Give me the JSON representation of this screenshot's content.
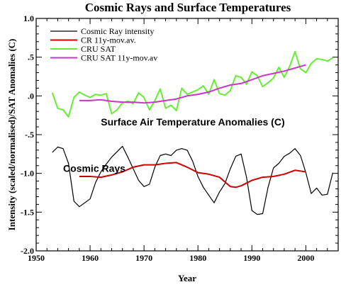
{
  "chart_data": {
    "type": "line",
    "title": "Cosmic Rays and Surface Temperatures",
    "xlabel": "Year",
    "ylabel": "Intensity (scaled/normalised)/SAT Anomalies (C)",
    "xlim": [
      1950,
      2006
    ],
    "ylim": [
      -2.0,
      1.0
    ],
    "xticks": [
      1950,
      1960,
      1970,
      1980,
      1990,
      2000
    ],
    "yticks": [
      -2.0,
      -1.5,
      -1.0,
      -0.5,
      0.0,
      0.5,
      1.0
    ],
    "xtick_labels": [
      "1950",
      "1960",
      "1970",
      "1980",
      "1990",
      "2000"
    ],
    "ytick_labels": [
      "-2.0",
      "-1.5",
      "-1.0",
      "-.5",
      ".0",
      ".5",
      "1.0"
    ],
    "grid": false,
    "legend_position": "top-left",
    "annotations": [
      {
        "text": "Surface Air Temperature Anomalies (C)",
        "x": 1962,
        "y": -0.38
      },
      {
        "text": "Cosmic Rays",
        "x": 1955,
        "y": -0.98
      }
    ],
    "series": [
      {
        "name": "Cosmic Ray intensity",
        "color": "#000000",
        "x": [
          1953,
          1954,
          1955,
          1956,
          1957,
          1958,
          1959,
          1960,
          1961,
          1962,
          1963,
          1964,
          1965,
          1966,
          1967,
          1968,
          1969,
          1970,
          1971,
          1972,
          1973,
          1974,
          1975,
          1976,
          1977,
          1978,
          1979,
          1980,
          1981,
          1982,
          1983,
          1984,
          1985,
          1986,
          1987,
          1988,
          1989,
          1990,
          1991,
          1992,
          1993,
          1994,
          1995,
          1996,
          1997,
          1998,
          1999,
          2000,
          2001,
          2002,
          2003,
          2004,
          2005
        ],
        "y": [
          -0.73,
          -0.66,
          -0.68,
          -0.87,
          -1.36,
          -1.43,
          -1.38,
          -1.33,
          -1.12,
          -0.98,
          -0.88,
          -0.79,
          -0.72,
          -0.65,
          -0.79,
          -0.94,
          -1.09,
          -1.17,
          -1.14,
          -0.92,
          -0.77,
          -0.75,
          -0.77,
          -0.7,
          -0.68,
          -0.7,
          -0.84,
          -1.04,
          -1.18,
          -1.28,
          -1.38,
          -1.24,
          -1.13,
          -0.94,
          -0.78,
          -0.75,
          -1.05,
          -1.48,
          -1.53,
          -1.52,
          -1.18,
          -0.93,
          -0.87,
          -0.78,
          -0.74,
          -0.68,
          -0.77,
          -0.99,
          -1.26,
          -1.19,
          -1.28,
          -1.27,
          -0.99
        ]
      },
      {
        "name": "CR 11y-mov.av.",
        "color": "#cc0000",
        "x": [
          1958,
          1960,
          1962,
          1964,
          1966,
          1968,
          1970,
          1972,
          1974,
          1976,
          1978,
          1980,
          1982,
          1984,
          1986,
          1987,
          1988,
          1990,
          1992,
          1994,
          1996,
          1998,
          2000
        ],
        "y": [
          -1.04,
          -1.04,
          -1.05,
          -1.02,
          -0.98,
          -0.92,
          -0.89,
          -0.89,
          -0.87,
          -0.86,
          -0.92,
          -0.99,
          -1.01,
          -1.05,
          -1.17,
          -1.18,
          -1.16,
          -1.09,
          -1.05,
          -1.04,
          -1.01,
          -0.96,
          -0.98
        ]
      },
      {
        "name": "CRU SAT",
        "color": "#66ee33",
        "x": [
          1953,
          1954,
          1955,
          1956,
          1957,
          1958,
          1959,
          1960,
          1961,
          1962,
          1963,
          1964,
          1965,
          1966,
          1967,
          1968,
          1969,
          1970,
          1971,
          1972,
          1973,
          1974,
          1975,
          1976,
          1977,
          1978,
          1979,
          1980,
          1981,
          1982,
          1983,
          1984,
          1985,
          1986,
          1987,
          1988,
          1989,
          1990,
          1991,
          1992,
          1993,
          1994,
          1995,
          1996,
          1997,
          1998,
          1999,
          2000,
          2001,
          2002,
          2003,
          2004,
          2005
        ],
        "y": [
          0.04,
          -0.16,
          -0.18,
          -0.27,
          -0.02,
          0.05,
          0.01,
          -0.02,
          0.02,
          0.01,
          0.03,
          -0.23,
          -0.18,
          -0.09,
          -0.07,
          -0.1,
          0.04,
          -0.02,
          -0.18,
          -0.06,
          0.09,
          -0.16,
          -0.12,
          -0.19,
          0.1,
          0.02,
          0.05,
          0.08,
          0.13,
          0.02,
          0.21,
          0.03,
          0.01,
          0.07,
          0.26,
          0.24,
          0.15,
          0.31,
          0.26,
          0.12,
          0.17,
          0.23,
          0.37,
          0.24,
          0.38,
          0.57,
          0.35,
          0.3,
          0.42,
          0.48,
          0.47,
          0.45,
          0.49
        ]
      },
      {
        "name": "CRU SAT 11y-mov.av",
        "color": "#cc33cc",
        "x": [
          1958,
          1960,
          1962,
          1964,
          1966,
          1968,
          1970,
          1972,
          1974,
          1976,
          1978,
          1980,
          1982,
          1984,
          1986,
          1988,
          1990,
          1992,
          1994,
          1996,
          1998,
          2000
        ],
        "y": [
          -0.06,
          -0.06,
          -0.05,
          -0.07,
          -0.08,
          -0.08,
          -0.09,
          -0.08,
          -0.06,
          -0.04,
          0.0,
          0.02,
          0.05,
          0.1,
          0.14,
          0.16,
          0.21,
          0.26,
          0.29,
          0.32,
          0.36,
          0.4
        ]
      }
    ]
  }
}
